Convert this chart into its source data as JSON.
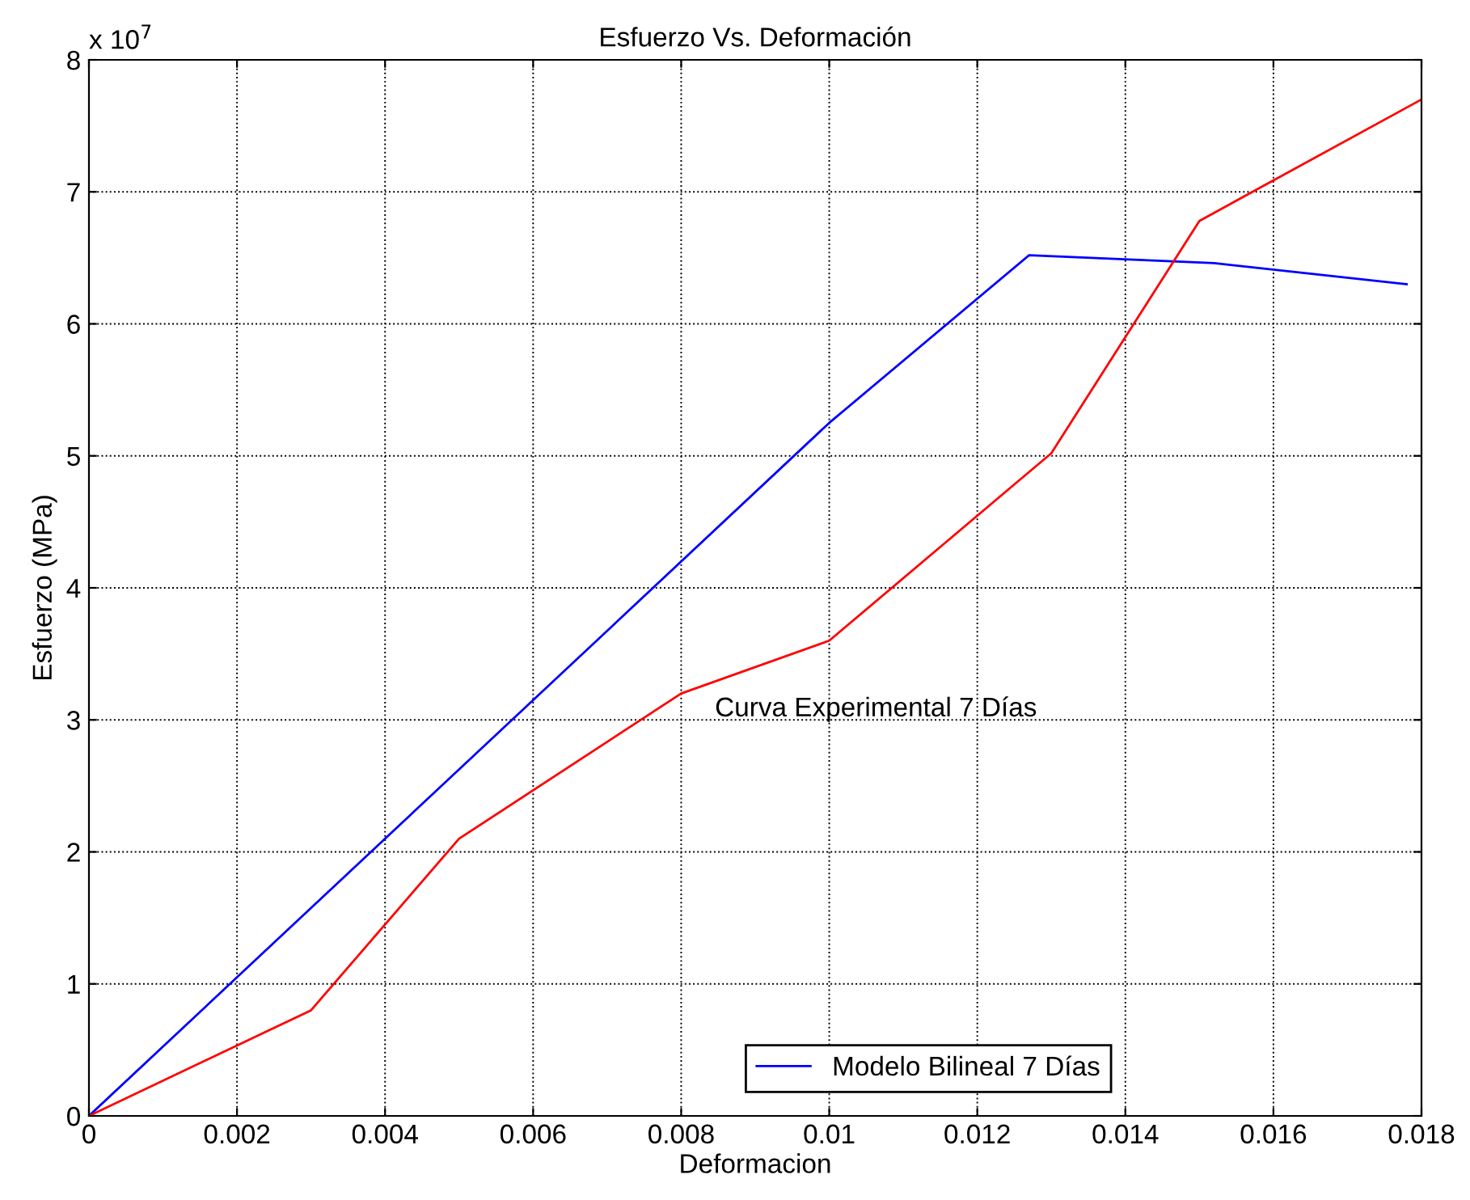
{
  "chart_data": {
    "type": "line",
    "title": "Esfuerzo Vs. Deformación",
    "xlabel": "Deformacion",
    "ylabel": "Esfuerzo (MPa)",
    "series": [
      {
        "name": "Modelo Bilineal 7 Días",
        "color": "#0000ff",
        "x": [
          0,
          0.01,
          0.0127,
          0.0152,
          0.0178
        ],
        "values": [
          0,
          5.25,
          6.52,
          6.46,
          6.3
        ]
      },
      {
        "name": "Curva Experimental 7 Días",
        "color": "#ff0000",
        "x": [
          0,
          0.003,
          0.005,
          0.008,
          0.01,
          0.013,
          0.015,
          0.018
        ],
        "values": [
          0,
          0.8,
          2.1,
          3.2,
          3.6,
          5.02,
          6.78,
          7.7
        ]
      }
    ],
    "annotations": [
      "x 10$^{7}$"
    ],
    "xlim": [
      0,
      0.018
    ],
    "xticks": [
      0,
      0.002,
      0.004,
      0.006,
      0.008,
      0.01,
      0.012,
      0.014,
      0.016,
      0.018
    ],
    "ylim": [
      0,
      8
    ],
    "yticks": [
      0,
      1,
      2,
      3,
      4,
      5,
      6,
      7,
      8
    ],
    "grid": true,
    "legend": "bottom",
    "line_style": "solid",
    "marker": "none"
  }
}
